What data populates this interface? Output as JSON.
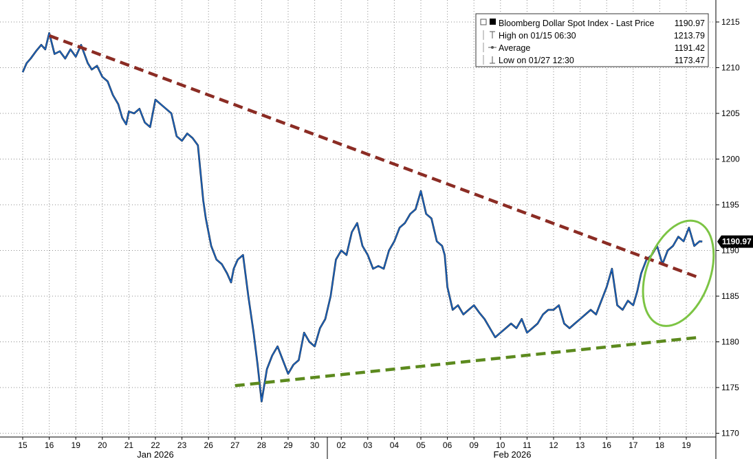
{
  "chart_data": {
    "type": "line",
    "title": "",
    "xlabel": "",
    "ylabel": "",
    "y_axis_position": "right",
    "ylim": [
      1170,
      1216
    ],
    "yticks": [
      1170,
      1175,
      1180,
      1185,
      1190,
      1195,
      1200,
      1205,
      1210,
      1215
    ],
    "grid": "dotted",
    "x_tick_labels": [
      "15",
      "16",
      "19",
      "20",
      "21",
      "22",
      "23",
      "26",
      "27",
      "28",
      "29",
      "30",
      "02",
      "03",
      "04",
      "05",
      "06",
      "09",
      "10",
      "11",
      "12",
      "13",
      "16",
      "17",
      "18",
      "19"
    ],
    "month_labels": [
      "Jan 2026",
      "Feb 2026"
    ],
    "legend_position": "top-right",
    "legend": [
      {
        "symbol": "box",
        "label": "Bloomberg Dollar Spot Index - Last Price",
        "value": "1190.97"
      },
      {
        "symbol": "high",
        "label": "High on 01/15 06:30",
        "value": "1213.79"
      },
      {
        "symbol": "average",
        "label": "Average",
        "value": "1191.42"
      },
      {
        "symbol": "low",
        "label": "Low on 01/27 12:30",
        "value": "1173.47"
      }
    ],
    "last_price_label": "1190.97",
    "series": [
      {
        "name": "Bloomberg Dollar Spot Index - Last Price",
        "color": "#1f6fd1",
        "x": [
          0,
          0.15,
          0.3,
          0.5,
          0.7,
          0.85,
          1.0,
          1.2,
          1.4,
          1.6,
          1.8,
          2.0,
          2.2,
          2.45,
          2.6,
          2.8,
          3.0,
          3.2,
          3.4,
          3.6,
          3.75,
          3.9,
          4.0,
          4.2,
          4.4,
          4.6,
          4.8,
          5.0,
          5.2,
          5.4,
          5.6,
          5.8,
          6.0,
          6.2,
          6.4,
          6.6,
          6.8,
          6.9,
          7.1,
          7.3,
          7.5,
          7.7,
          7.85,
          7.95,
          8.1,
          8.3,
          8.5,
          8.7,
          8.85,
          9.0,
          9.2,
          9.4,
          9.6,
          9.8,
          10.0,
          10.2,
          10.4,
          10.6,
          10.8,
          11.0,
          11.2,
          11.4,
          11.6,
          11.8,
          12.0,
          12.2,
          12.4,
          12.6,
          12.8,
          13.0,
          13.2,
          13.4,
          13.6,
          13.8,
          14.0,
          14.2,
          14.4,
          14.6,
          14.8,
          15.0,
          15.2,
          15.4,
          15.6,
          15.8,
          15.9,
          16.0,
          16.2,
          16.4,
          16.6,
          16.8,
          17.0,
          17.2,
          17.4,
          17.6,
          17.8,
          18.0,
          18.2,
          18.4,
          18.6,
          18.8,
          19.0,
          19.2,
          19.4,
          19.6,
          19.8,
          20.0,
          20.2,
          20.4,
          20.6,
          20.8,
          21.0,
          21.2,
          21.4,
          21.6,
          21.8,
          22.0,
          22.2,
          22.4,
          22.6,
          22.8,
          23.0,
          23.15,
          23.3,
          23.5,
          23.7,
          23.9,
          24.1,
          24.3,
          24.5,
          24.7,
          24.9,
          25.1,
          25.3,
          25.5,
          25.6
        ],
        "y": [
          1209.5,
          1210.5,
          1211.0,
          1211.8,
          1212.5,
          1212.0,
          1213.79,
          1211.5,
          1211.8,
          1211.0,
          1212.0,
          1211.2,
          1212.5,
          1210.5,
          1209.8,
          1210.2,
          1209.0,
          1208.5,
          1207.0,
          1206.0,
          1204.5,
          1203.8,
          1205.2,
          1205.0,
          1205.5,
          1204.0,
          1203.5,
          1206.5,
          1206.0,
          1205.5,
          1205.0,
          1202.5,
          1202.0,
          1202.8,
          1202.3,
          1201.5,
          1195.5,
          1193.5,
          1190.5,
          1189.0,
          1188.5,
          1187.5,
          1186.5,
          1188.0,
          1189.0,
          1189.5,
          1185.0,
          1181.0,
          1177.5,
          1173.47,
          1177.0,
          1178.5,
          1179.5,
          1178.0,
          1176.5,
          1177.5,
          1178.0,
          1181.0,
          1180.0,
          1179.5,
          1181.5,
          1182.5,
          1185.0,
          1189.0,
          1190.0,
          1189.5,
          1192.0,
          1193.0,
          1190.5,
          1189.5,
          1188.0,
          1188.3,
          1188.0,
          1190.0,
          1191.0,
          1192.5,
          1193.0,
          1194.0,
          1194.5,
          1196.5,
          1194.0,
          1193.5,
          1191.0,
          1190.5,
          1189.5,
          1186.0,
          1183.5,
          1184.0,
          1183.0,
          1183.5,
          1184.0,
          1183.2,
          1182.5,
          1181.5,
          1180.5,
          1181.0,
          1181.5,
          1182.0,
          1181.5,
          1182.5,
          1181.0,
          1181.5,
          1182.0,
          1183.0,
          1183.5,
          1183.5,
          1184.0,
          1182.0,
          1181.5,
          1182.0,
          1182.5,
          1183.0,
          1183.5,
          1183.0,
          1184.5,
          1186.0,
          1188.0,
          1184.0,
          1183.5,
          1184.5,
          1184.0,
          1185.5,
          1187.5,
          1189.0,
          1189.5,
          1190.5,
          1188.5,
          1190.0,
          1190.5,
          1191.5,
          1191.0,
          1192.5,
          1190.5,
          1191.0,
          1190.97
        ]
      },
      {
        "name": "",
        "style": "dashed",
        "color": "#8b2c24",
        "x": [
          1.0,
          25.5
        ],
        "y": [
          1213.5,
          1187.0
        ]
      },
      {
        "name": "",
        "style": "dashed",
        "color": "#5c8a1e",
        "x": [
          8.0,
          25.5
        ],
        "y": [
          1175.2,
          1180.5
        ]
      }
    ],
    "annotations": [
      {
        "type": "ellipse",
        "color": "#7cc444",
        "x_center": 24.7,
        "y_center": 1187.5,
        "x_radius": 1.2,
        "y_radius": 6.0
      }
    ]
  }
}
